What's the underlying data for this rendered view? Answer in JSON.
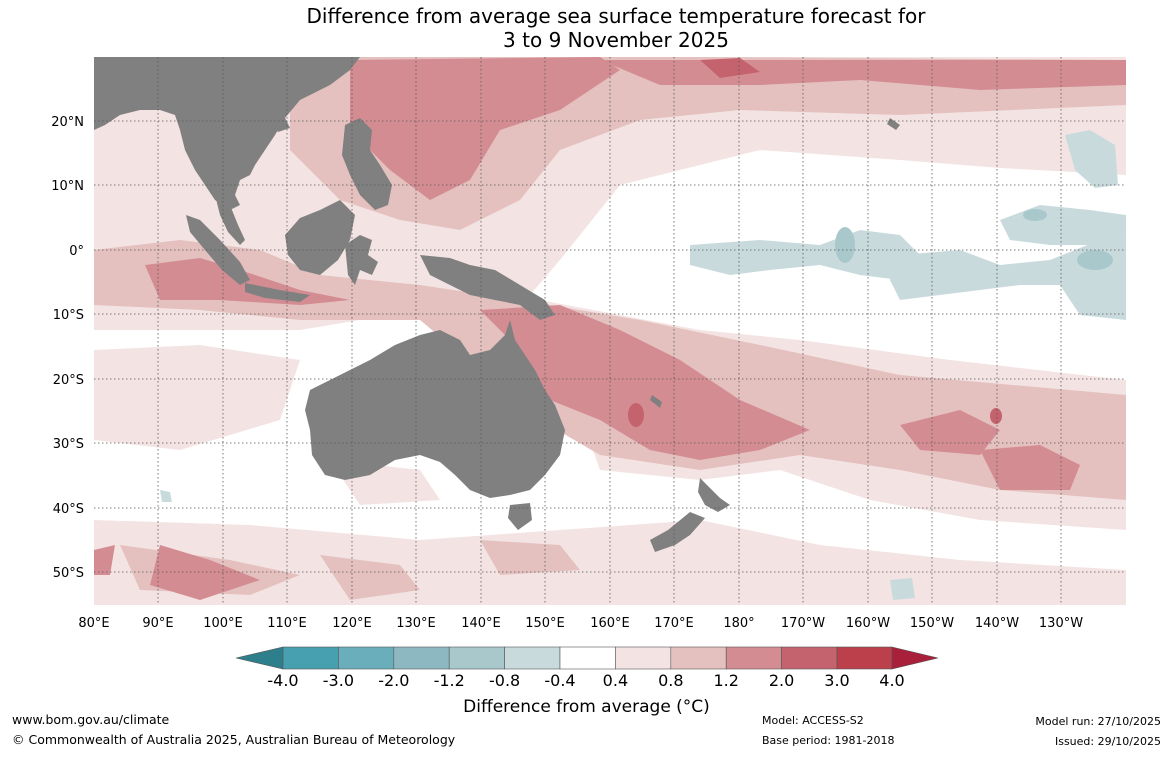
{
  "title": {
    "line1": "Difference from average sea surface temperature forecast for",
    "line2": "3 to 9 November 2025"
  },
  "map": {
    "lon_labels": [
      "80°E",
      "90°E",
      "100°E",
      "110°E",
      "120°E",
      "130°E",
      "140°E",
      "150°E",
      "160°E",
      "170°E",
      "180°",
      "170°W",
      "160°W",
      "150°W",
      "140°W",
      "130°W"
    ],
    "lat_labels": [
      "20°N",
      "10°N",
      "0°",
      "10°S",
      "20°S",
      "30°S",
      "40°S",
      "50°S"
    ],
    "land_color": "#808080",
    "grid": "dotted"
  },
  "legend": {
    "ticks": [
      "-4.0",
      "-3.0",
      "-2.0",
      "-1.2",
      "-0.8",
      "-0.4",
      "0.4",
      "0.8",
      "1.2",
      "2.0",
      "3.0",
      "4.0"
    ],
    "colors": [
      "#2e7f8c",
      "#47a0b0",
      "#6aaebb",
      "#8db8c2",
      "#a8c8cc",
      "#c9dadd",
      "#ffffff",
      "#f3e4e3",
      "#e4c1bf",
      "#d48c93",
      "#c4636d",
      "#bb404c",
      "#a8203a"
    ],
    "title": "Difference from average (°C)"
  },
  "footer": {
    "url": "www.bom.gov.au/climate",
    "copyright": "© Commonwealth of Australia 2025, Australian Bureau of Meteorology",
    "model": "Model: ACCESS-S2",
    "base_period": "Base period: 1981-2018",
    "model_run": "Model run: 27/10/2025",
    "issued": "Issued: 29/10/2025"
  }
}
